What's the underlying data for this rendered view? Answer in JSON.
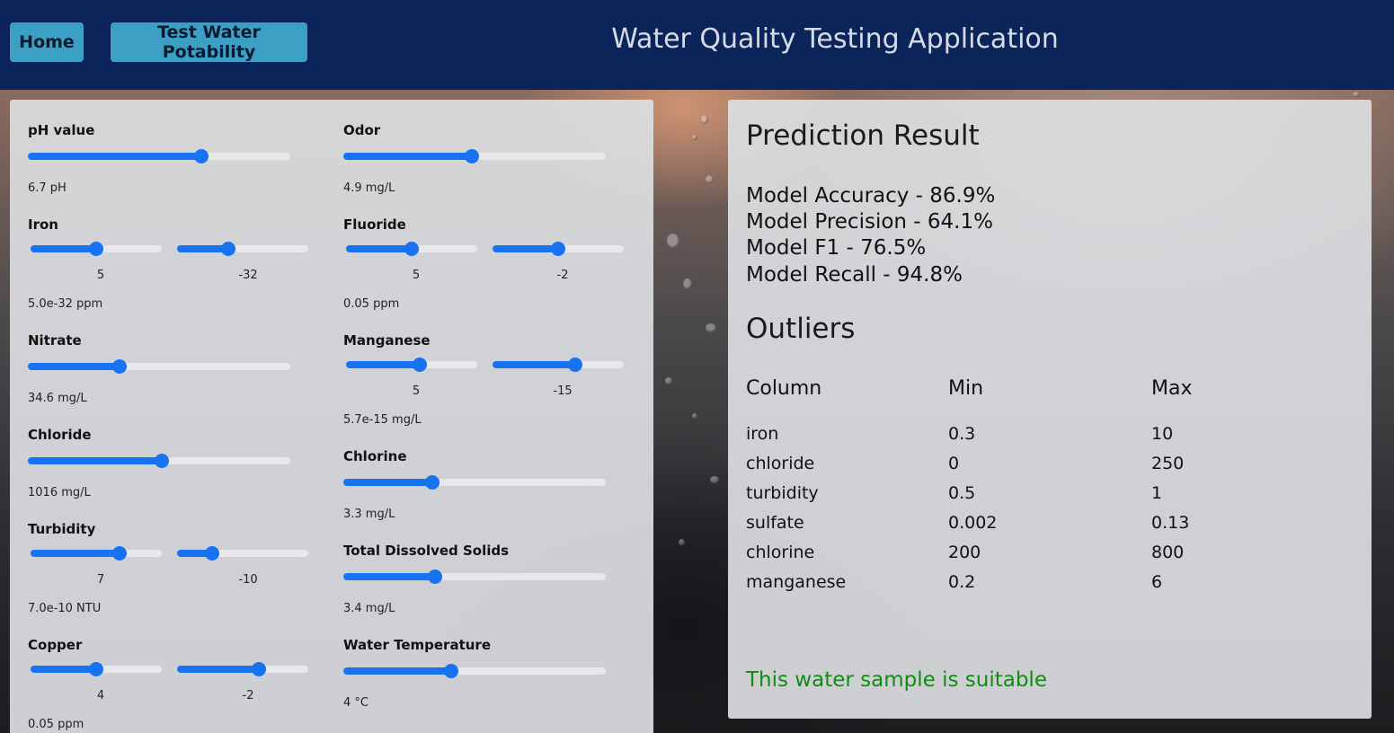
{
  "nav": {
    "home_label": "Home",
    "test_label": "Test Water Potability",
    "title": "Water Quality Testing Application",
    "background_color": "#0b2459",
    "button_color": "#3ba0c4"
  },
  "inputs": {
    "ph": {
      "label": "pH value",
      "value_text": "6.7 pH",
      "fraction": 0.66
    },
    "odor": {
      "label": "Odor",
      "value_text": "4.9 mg/L",
      "fraction": 0.49
    },
    "iron": {
      "label": "Iron",
      "mantissa_tick": "5",
      "exponent_tick": "-32",
      "mantissa_fraction": 0.5,
      "exponent_fraction": 0.39,
      "value_text": "5.0e-32 ppm"
    },
    "fluoride": {
      "label": "Fluoride",
      "mantissa_tick": "5",
      "exponent_tick": "-2",
      "mantissa_fraction": 0.5,
      "exponent_fraction": 0.5,
      "value_text": "0.05 ppm"
    },
    "nitrate": {
      "label": "Nitrate",
      "value_text": "34.6 mg/L",
      "fraction": 0.35
    },
    "manganese": {
      "label": "Manganese",
      "mantissa_tick": "5",
      "exponent_tick": "-15",
      "mantissa_fraction": 0.56,
      "exponent_fraction": 0.63,
      "value_text": "5.7e-15 mg/L"
    },
    "chloride": {
      "label": "Chloride",
      "value_text": "1016 mg/L",
      "fraction": 0.51
    },
    "chlorine": {
      "label": "Chlorine",
      "value_text": "3.3 mg/L",
      "fraction": 0.34
    },
    "turbidity": {
      "label": "Turbidity",
      "mantissa_tick": "7",
      "exponent_tick": "-10",
      "mantissa_fraction": 0.68,
      "exponent_fraction": 0.27,
      "value_text": "7.0e-10 NTU"
    },
    "tds": {
      "label": "Total Dissolved Solids",
      "value_text": "3.4 mg/L",
      "fraction": 0.35
    },
    "copper": {
      "label": "Copper",
      "mantissa_tick": "4",
      "exponent_tick": "-2",
      "mantissa_fraction": 0.5,
      "exponent_fraction": 0.62,
      "value_text": "0.05 ppm"
    },
    "water_temp": {
      "label": "Water Temperature",
      "value_text": "4 °C",
      "fraction": 0.41
    }
  },
  "result": {
    "heading": "Prediction Result",
    "metrics": [
      "Model Accuracy - 86.9%",
      "Model Precision - 64.1%",
      "Model F1 - 76.5%",
      "Model Recall - 94.8%"
    ],
    "outliers_heading": "Outliers",
    "columns": [
      "Column",
      "Min",
      "Max"
    ],
    "rows": [
      [
        "iron",
        "0.3",
        "10"
      ],
      [
        "chloride",
        "0",
        "250"
      ],
      [
        "turbidity",
        "0.5",
        "1"
      ],
      [
        "sulfate",
        "0.002",
        "0.13"
      ],
      [
        "chlorine",
        "200",
        "800"
      ],
      [
        "manganese",
        "0.2",
        "6"
      ]
    ],
    "verdict": "This water sample is suitable",
    "verdict_color": "#128b12"
  }
}
